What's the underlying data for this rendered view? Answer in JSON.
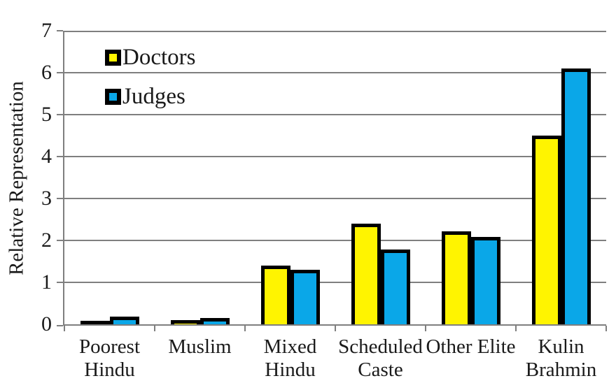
{
  "chart_data": {
    "type": "bar",
    "title": "",
    "ylabel": "Relative Representation",
    "xlabel": "",
    "ylim": [
      0,
      7
    ],
    "yticks": [
      0,
      1,
      2,
      3,
      4,
      5,
      6,
      7
    ],
    "grid": "horizontal gridlines at each integer",
    "legend_position": "inside top-left",
    "categories": [
      {
        "label": "Poorest Hindu",
        "lines": [
          "Poorest",
          "Hindu"
        ]
      },
      {
        "label": "Muslim",
        "lines": [
          "Muslim"
        ]
      },
      {
        "label": "Mixed Hindu",
        "lines": [
          "Mixed",
          "Hindu"
        ]
      },
      {
        "label": "Scheduled Caste",
        "lines": [
          "Scheduled",
          "Caste"
        ]
      },
      {
        "label": "Other Elite",
        "lines": [
          "Other Elite"
        ]
      },
      {
        "label": "Kulin Brahmin",
        "lines": [
          "Kulin",
          "Brahmin"
        ]
      }
    ],
    "series": [
      {
        "name": "Doctors",
        "color": "#FFF400",
        "values": [
          0.08,
          0.1,
          1.4,
          2.4,
          2.22,
          4.5
        ]
      },
      {
        "name": "Judges",
        "color": "#0AA7E8",
        "values": [
          0.18,
          0.15,
          1.3,
          1.78,
          2.08,
          6.1
        ]
      }
    ],
    "colors": {
      "bar_border": "#000000",
      "gridline": "#7F7F7F",
      "axis": "#7F7F7F",
      "text": "#1A1A1A",
      "background": "#FFFFFF"
    }
  }
}
